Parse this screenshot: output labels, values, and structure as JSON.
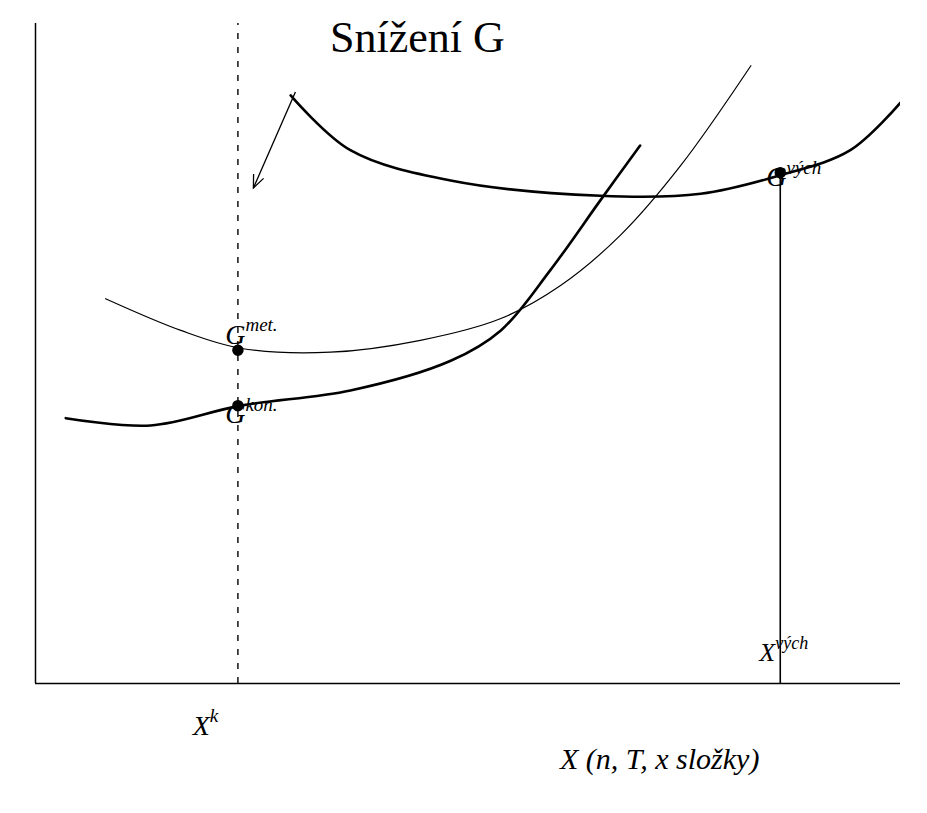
{
  "chart_data": {
    "type": "line",
    "title": "Snížení G",
    "x_label": "X (n, T, x složky)",
    "xlim": [
      0,
      100
    ],
    "ylim": [
      0,
      100
    ],
    "xticks": [],
    "yticks": [],
    "tick_labels": false,
    "grid": false,
    "series": [
      {
        "label": {
          "base": "G",
          "sup": "met."
        },
        "color": "#000000",
        "line_style": "thin",
        "marker": "circle",
        "x": [
          8.1,
          16.8,
          23.7,
          34.1,
          44.5,
          53.8,
          60.7,
          67.6,
          74.6,
          82.7
        ],
        "values": [
          58.3,
          53.5,
          50.8,
          50.2,
          52.0,
          55.3,
          60.3,
          67.9,
          78.5,
          93.6
        ],
        "points": [
          {
            "x": 23.4,
            "y": 50.5
          }
        ]
      },
      {
        "label": {
          "base": "G",
          "sup": "kon."
        },
        "color": "#000000",
        "line_style": "thick",
        "marker": "circle",
        "x": [
          3.5,
          13.3,
          23.7,
          36.4,
          48.0,
          53.8,
          59.5,
          65.3,
          69.9
        ],
        "values": [
          40.2,
          39.1,
          42.1,
          44.4,
          48.9,
          53.5,
          62.6,
          73.2,
          81.5
        ],
        "points": [
          {
            "x": 23.4,
            "y": 42.1
          }
        ]
      },
      {
        "label": {
          "base": "G",
          "sup": "vých"
        },
        "color": "#000000",
        "line_style": "thick",
        "marker": "circle",
        "x": [
          29.5,
          36.4,
          48.0,
          65.3,
          76.9,
          86.1,
          94.2,
          100
        ],
        "values": [
          89.1,
          80.8,
          76.2,
          73.9,
          74.2,
          77.0,
          80.8,
          88.0
        ],
        "points": [
          {
            "x": 86.1,
            "y": 77.4
          }
        ]
      }
    ],
    "vlines": [
      {
        "x": 23.4,
        "label": {
          "base": "X",
          "sup": "k"
        },
        "line_style": "dashed"
      },
      {
        "x": 86.1,
        "y_end": 77.4,
        "label": {
          "base": "X",
          "sup": "vých"
        },
        "line_style": "solid"
      }
    ]
  }
}
